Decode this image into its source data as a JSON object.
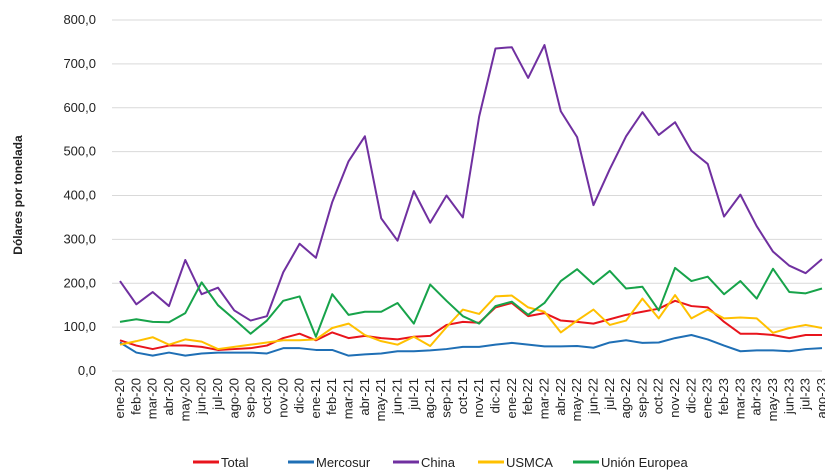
{
  "chart_data": {
    "type": "line",
    "y_label": "Dólares por tonelada",
    "categories": [
      "ene-20",
      "feb-20",
      "mar-20",
      "abr-20",
      "may-20",
      "jun-20",
      "jul-20",
      "ago-20",
      "sep-20",
      "oct-20",
      "nov-20",
      "dic-20",
      "ene-21",
      "feb-21",
      "mar-21",
      "abr-21",
      "may-21",
      "jun-21",
      "jul-21",
      "ago-21",
      "sep-21",
      "oct-21",
      "nov-21",
      "dic-21",
      "ene-22",
      "feb-22",
      "mar-22",
      "abr-22",
      "may-22",
      "jun-22",
      "jul-22",
      "ago-22",
      "sep-22",
      "oct-22",
      "nov-22",
      "dic-22",
      "ene-23",
      "feb-23",
      "mar-23",
      "abr-23",
      "may-23",
      "jun-23",
      "jul-23",
      "ago-23"
    ],
    "series": [
      {
        "name": "Total",
        "color": "#e8141c",
        "values": [
          70,
          58,
          50,
          58,
          58,
          55,
          48,
          50,
          52,
          58,
          75,
          85,
          70,
          88,
          75,
          80,
          75,
          72,
          78,
          80,
          105,
          112,
          110,
          145,
          155,
          125,
          132,
          115,
          112,
          108,
          118,
          128,
          135,
          142,
          160,
          148,
          145,
          112,
          85,
          85,
          82,
          75,
          82,
          82
        ]
      },
      {
        "name": "Mercosur",
        "color": "#1f6fb5",
        "values": [
          65,
          42,
          35,
          42,
          35,
          40,
          42,
          42,
          42,
          40,
          52,
          52,
          48,
          48,
          35,
          38,
          40,
          45,
          45,
          47,
          50,
          55,
          55,
          60,
          64,
          60,
          56,
          56,
          57,
          53,
          65,
          70,
          64,
          65,
          75,
          82,
          72,
          58,
          45,
          47,
          47,
          45,
          50,
          52
        ]
      },
      {
        "name": "China",
        "color": "#7030a0",
        "values": [
          205,
          152,
          180,
          148,
          253,
          175,
          190,
          138,
          115,
          125,
          225,
          290,
          258,
          385,
          478,
          535,
          348,
          297,
          410,
          338,
          400,
          350,
          580,
          735,
          738,
          668,
          743,
          592,
          533,
          378,
          460,
          535,
          590,
          538,
          567,
          502,
          472,
          352,
          402,
          330,
          272,
          240,
          223,
          255
        ]
      },
      {
        "name": "USMCA",
        "color": "#ffc000",
        "values": [
          60,
          68,
          77,
          60,
          72,
          67,
          50,
          55,
          60,
          65,
          70,
          70,
          72,
          98,
          108,
          82,
          68,
          60,
          78,
          57,
          100,
          140,
          130,
          170,
          172,
          145,
          135,
          88,
          115,
          140,
          105,
          115,
          165,
          120,
          173,
          120,
          140,
          120,
          122,
          120,
          87,
          98,
          105,
          98
        ]
      },
      {
        "name": "Unión Europea",
        "color": "#17a34a",
        "values": [
          112,
          118,
          112,
          111,
          132,
          202,
          150,
          118,
          85,
          115,
          160,
          170,
          78,
          175,
          128,
          135,
          135,
          155,
          108,
          197,
          160,
          125,
          108,
          148,
          158,
          128,
          155,
          205,
          232,
          198,
          228,
          188,
          192,
          138,
          235,
          205,
          215,
          175,
          205,
          165,
          233,
          180,
          177,
          188
        ]
      }
    ],
    "ylim": [
      0,
      800
    ],
    "yticks": [
      {
        "value": 0,
        "label": "0,0"
      },
      {
        "value": 100,
        "label": "100,0"
      },
      {
        "value": 200,
        "label": "200,0"
      },
      {
        "value": 300,
        "label": "300,0"
      },
      {
        "value": 400,
        "label": "400,0"
      },
      {
        "value": 500,
        "label": "500,0"
      },
      {
        "value": 600,
        "label": "600,0"
      },
      {
        "value": 700,
        "label": "700,0"
      },
      {
        "value": 800,
        "label": "800,0"
      }
    ],
    "grid": true
  }
}
